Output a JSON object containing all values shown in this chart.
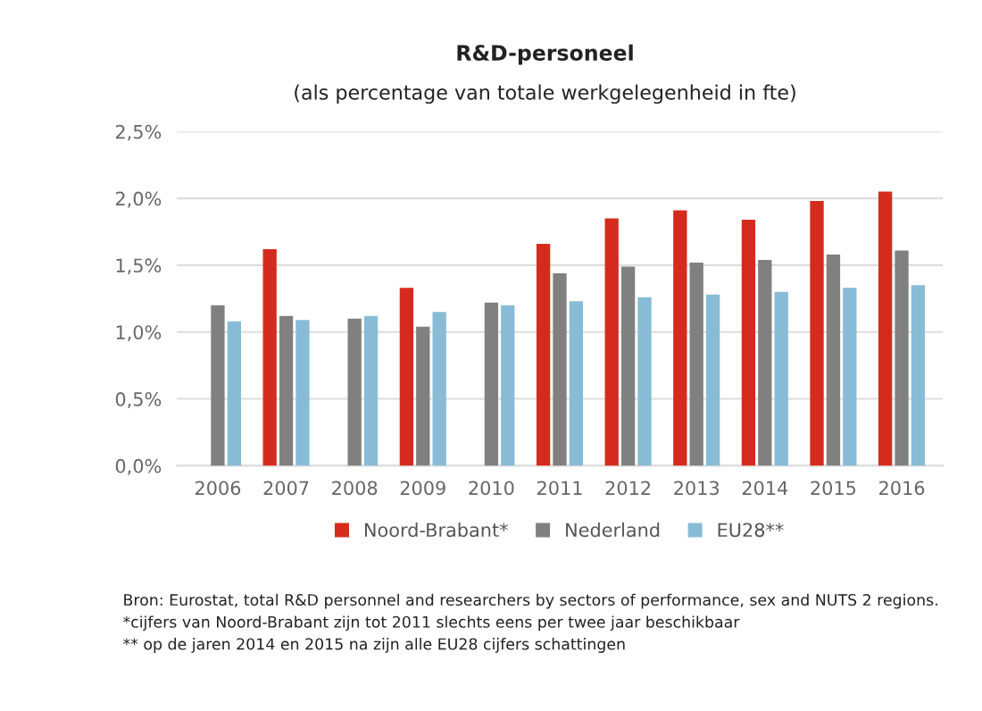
{
  "chart_data": {
    "type": "bar",
    "title": "R&D-personeel",
    "subtitle": "(als percentage van totale werkgelegenheid in fte)",
    "categories": [
      "2006",
      "2007",
      "2008",
      "2009",
      "2010",
      "2011",
      "2012",
      "2013",
      "2014",
      "2015",
      "2016"
    ],
    "series": [
      {
        "name": "Noord-Brabant*",
        "color": "#d52b1e",
        "values": [
          null,
          1.62,
          null,
          1.33,
          null,
          1.66,
          1.85,
          1.91,
          1.84,
          1.98,
          2.05
        ]
      },
      {
        "name": "Nederland",
        "color": "#808080",
        "values": [
          1.2,
          1.12,
          1.1,
          1.04,
          1.22,
          1.44,
          1.49,
          1.52,
          1.54,
          1.58,
          1.61
        ]
      },
      {
        "name": "EU28**",
        "color": "#88bcd6",
        "values": [
          1.08,
          1.09,
          1.12,
          1.15,
          1.2,
          1.23,
          1.26,
          1.28,
          1.3,
          1.33,
          1.35
        ]
      }
    ],
    "ylim": [
      0,
      2.5
    ],
    "yticks": [
      {
        "value": 0,
        "label": "0,0%"
      },
      {
        "value": 0.5,
        "label": "0,5%"
      },
      {
        "value": 1,
        "label": "1,0%"
      },
      {
        "value": 1.5,
        "label": "1,5%"
      },
      {
        "value": 2,
        "label": "2,0%"
      },
      {
        "value": 2.5,
        "label": "2,5%"
      }
    ],
    "grid": "y",
    "legend": "bottom",
    "annotations": [
      "Bron: Eurostat, total R&D personnel and researchers by sectors of performance, sex and NUTS 2 regions.  *cijfers van Noord-Brabant zijn tot 2011 slechts eens per twee jaar beschikbaar\n** op de jaren 2014 en 2015 na zijn alle EU28 cijfers schattingen"
    ]
  }
}
